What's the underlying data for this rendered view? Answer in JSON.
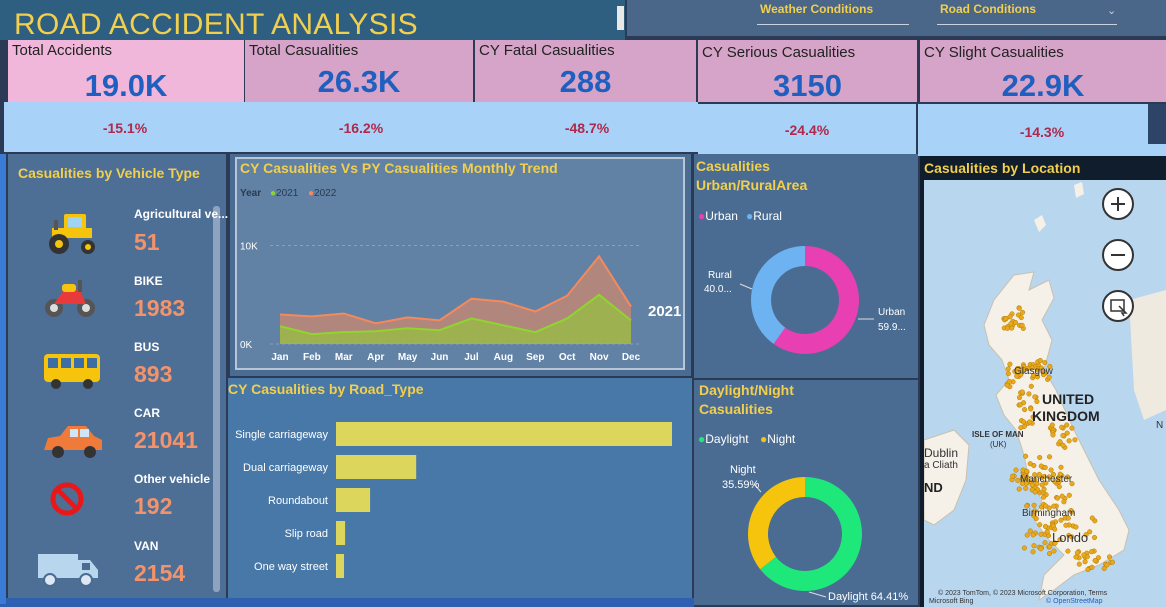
{
  "header": {
    "title": "ROAD ACCIDENT ANALYSIS"
  },
  "slicers": {
    "weather": "Weather Conditions",
    "road": "Road Conditions"
  },
  "kpis": [
    {
      "label": "Total Accidents",
      "value": "19.0K",
      "change": "-15.1%"
    },
    {
      "label": "Total Casualities",
      "value": "26.3K",
      "change": "-16.2%"
    },
    {
      "label": "CY Fatal Casualities",
      "value": "288",
      "change": "-48.7%"
    },
    {
      "label": "CY Serious Casualities",
      "value": "3150",
      "change": "-24.4%"
    },
    {
      "label": "CY Slight Casualities",
      "value": "22.9K",
      "change": "-14.3%"
    }
  ],
  "colors": {
    "accent": "#f2cf4c",
    "kpi_value": "#1f5fbf",
    "change": "#b0284b",
    "urban": "#e83fb3",
    "rural": "#6db3f2",
    "daylight": "#1ee87a",
    "night": "#f6c40c",
    "bar": "#dcd65c",
    "y2021": "#8ed62e",
    "y2022": "#f48a5c"
  },
  "vehicle": {
    "title": "Casualities by Vehicle Type",
    "items": [
      {
        "label": "Agricultural ve...",
        "value": "51",
        "icon": "tractor-icon"
      },
      {
        "label": "BIKE",
        "value": "1983",
        "icon": "motorbike-icon"
      },
      {
        "label": "BUS",
        "value": "893",
        "icon": "bus-icon"
      },
      {
        "label": "CAR",
        "value": "21041",
        "icon": "car-icon"
      },
      {
        "label": "Other vehicle",
        "value": "192",
        "icon": "no-entry-icon"
      },
      {
        "label": "VAN",
        "value": "2154",
        "icon": "van-icon"
      }
    ]
  },
  "trend": {
    "title": "CY Casualities Vs PY Casualities Monthly Trend",
    "legend_title": "Year",
    "end_label": "2021"
  },
  "road": {
    "title": "CY Casualities by Road_Type"
  },
  "urban": {
    "title_line1": "Casualities",
    "title_line2": "Urban/RuralArea",
    "rural_name": "Rural",
    "rural_pct": "40.0...",
    "urban_name": "Urban",
    "urban_pct": "59.9..."
  },
  "daynight": {
    "title_line1": "Daylight/Night",
    "title_line2": "Casualities",
    "night_name": "Night",
    "night_pct": "35.59%",
    "day_label": "Daylight 64.41%"
  },
  "map": {
    "title": "Casualities by Location",
    "labels": {
      "glasgow": "Glasgow",
      "uk1": "UNITED",
      "uk2": "KINGDOM",
      "isle1": "ISLE OF MAN",
      "isle2": "(UK)",
      "dublin": "Dublin",
      "baile": "a Cliath",
      "ind": "ND",
      "manchester": "Manchester",
      "birmingham": "Birmingham",
      "london": "Londo",
      "n": "N"
    },
    "copyright": "© 2023 TomTom, © 2023 Microsoft Corporation, Terms",
    "osm": "© OpenStreetMap",
    "bing": "Microsoft Bing"
  },
  "chart_data": [
    {
      "type": "line",
      "title": "CY Casualities Vs PY Casualities Monthly Trend",
      "x": [
        "Jan",
        "Feb",
        "Mar",
        "Apr",
        "May",
        "Jun",
        "Jul",
        "Aug",
        "Sep",
        "Oct",
        "Nov",
        "Dec"
      ],
      "yticks": [
        "0K",
        "10K"
      ],
      "ylim": [
        0,
        13000
      ],
      "series": [
        {
          "name": "2021",
          "values": [
            1800,
            1000,
            1200,
            1300,
            1600,
            1400,
            2600,
            1900,
            1200,
            2600,
            5000,
            2400
          ]
        },
        {
          "name": "2022",
          "values": [
            3000,
            2800,
            3100,
            2100,
            2700,
            2400,
            4600,
            4300,
            3300,
            4900,
            8900,
            3800
          ]
        }
      ],
      "legend": "top-left",
      "grid": true
    },
    {
      "type": "bar",
      "orientation": "horizontal",
      "title": "CY Casualities by Road_Type",
      "categories": [
        "Single carriageway",
        "Dual carriageway",
        "Roundabout",
        "Slip road",
        "One way street"
      ],
      "values": [
        19643,
        4688,
        1992,
        531,
        469
      ]
    },
    {
      "type": "pie",
      "donut": true,
      "title": "Casualities Urban/RuralArea",
      "categories": [
        "Urban",
        "Rural"
      ],
      "values": [
        59.9,
        40.1
      ],
      "legend": "top-left"
    },
    {
      "type": "pie",
      "donut": true,
      "title": "Daylight/Night Casualities",
      "categories": [
        "Daylight",
        "Night"
      ],
      "values": [
        64.41,
        35.59
      ],
      "legend": "top-left"
    }
  ]
}
